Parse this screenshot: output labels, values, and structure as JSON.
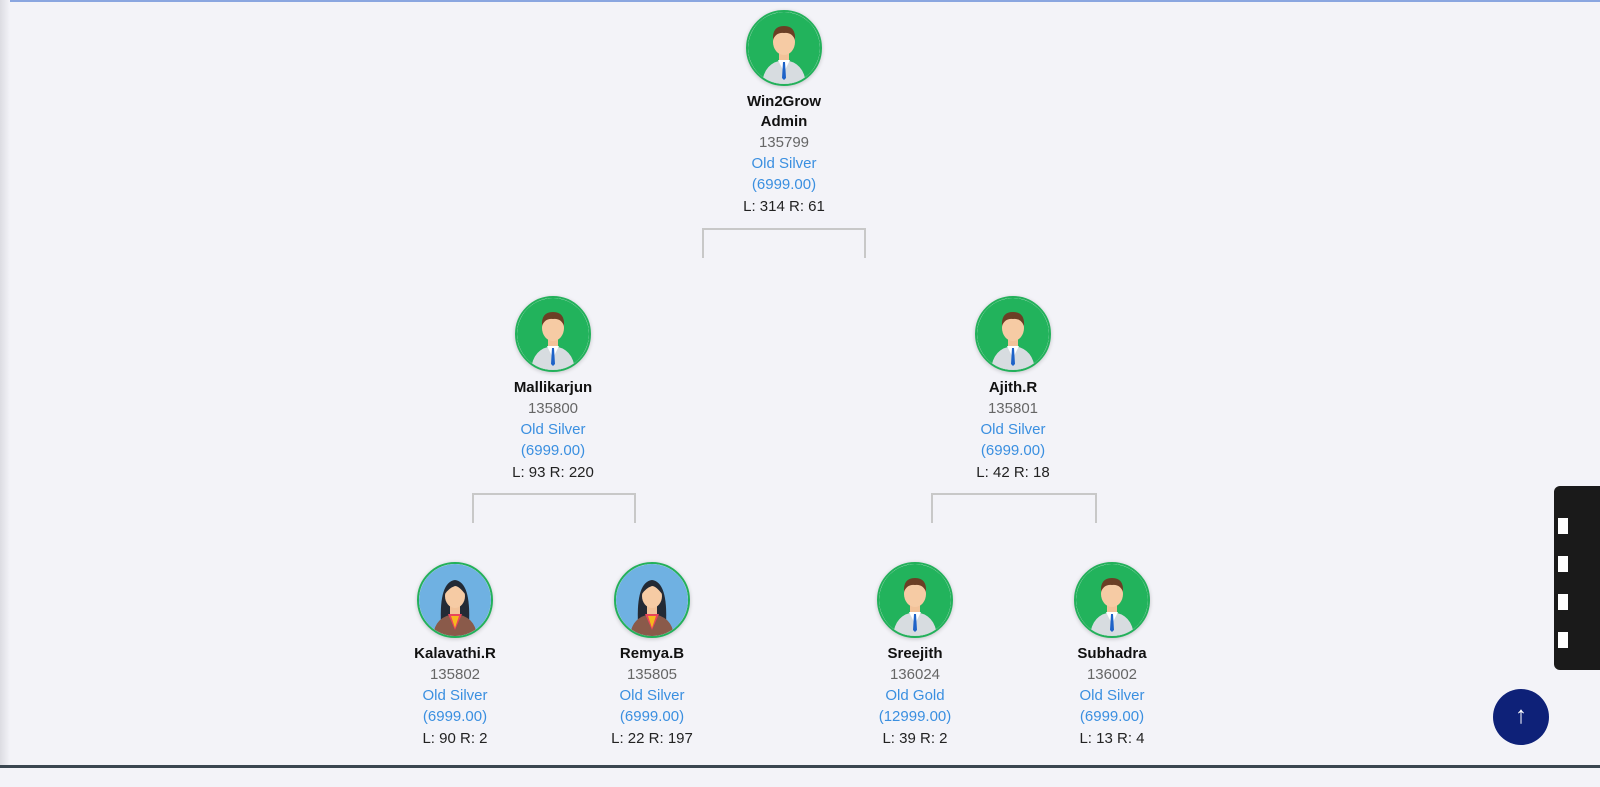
{
  "tree": {
    "nodes": [
      {
        "name": "Win2Grow Admin",
        "id": "135799",
        "plan": "Old Silver",
        "price": "(6999.00)",
        "lr": "L: 314 R: 61",
        "avatar": "male-avatar-icon"
      },
      {
        "name": "Mallikarjun",
        "id": "135800",
        "plan": "Old Silver",
        "price": "(6999.00)",
        "lr": "L: 93 R: 220",
        "avatar": "male-avatar-icon"
      },
      {
        "name": "Ajith.R",
        "id": "135801",
        "plan": "Old Silver",
        "price": "(6999.00)",
        "lr": "L: 42 R: 18",
        "avatar": "male-avatar-icon"
      },
      {
        "name": "Kalavathi.R",
        "id": "135802",
        "plan": "Old Silver",
        "price": "(6999.00)",
        "lr": "L: 90 R: 2",
        "avatar": "female-avatar-icon"
      },
      {
        "name": "Remya.B",
        "id": "135805",
        "plan": "Old Silver",
        "price": "(6999.00)",
        "lr": "L: 22 R: 197",
        "avatar": "female-avatar-icon"
      },
      {
        "name": "Sreejith",
        "id": "136024",
        "plan": "Old Gold",
        "price": "(12999.00)",
        "lr": "L: 39 R: 2",
        "avatar": "male-avatar-icon"
      },
      {
        "name": "Subhadra",
        "id": "136002",
        "plan": "Old Silver",
        "price": "(6999.00)",
        "lr": "L: 13 R: 4",
        "avatar": "male-avatar-icon"
      }
    ]
  },
  "scroll_top": {
    "icon": "arrow-up-icon",
    "glyph": "↑"
  },
  "colors": {
    "accent": "#3a8fe0",
    "avatar_ring": "#23b05a",
    "scroll_button": "#0e2178"
  }
}
